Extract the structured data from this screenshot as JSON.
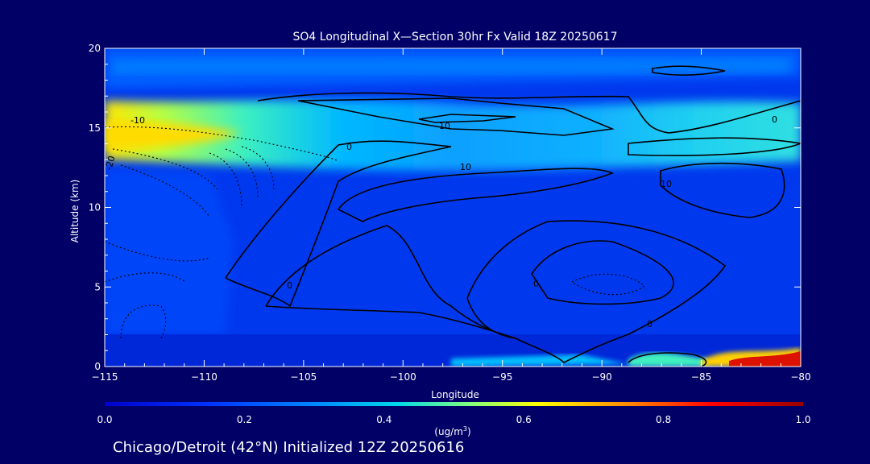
{
  "chart_data": {
    "type": "heatmap",
    "title": "SO4 Longitudinal X—Section 30hr  Fx Valid 18Z 20250617",
    "xlabel": "Longitude",
    "ylabel": "Altitude (km)",
    "xlim": [
      -115,
      -80
    ],
    "ylim": [
      0,
      20
    ],
    "x_ticks": [
      -115,
      -110,
      -105,
      -100,
      -95,
      -90,
      -85,
      -80
    ],
    "x_tick_labels": [
      "−115",
      "−110",
      "−105",
      "−100",
      "−95",
      "−90",
      "−85",
      "−80"
    ],
    "y_ticks": [
      0,
      5,
      10,
      15,
      20
    ],
    "y_tick_labels": [
      "0",
      "5",
      "10",
      "15",
      "20"
    ],
    "colorbar": {
      "min": 0.0,
      "max": 1.0,
      "ticks": [
        "0.0",
        "0.2",
        "0.4",
        "0.6",
        "0.8",
        "1.0"
      ],
      "units_label": "(ug/m",
      "units_sup": "3",
      "units_close": ")"
    },
    "colorscale": [
      "#0000cc",
      "#0033ff",
      "#0088ff",
      "#00d8e8",
      "#7fff7f",
      "#ffff00",
      "#ff8800",
      "#ff0000",
      "#990000"
    ],
    "contour_labels": [
      "-10",
      "-20",
      "0",
      "10",
      "10",
      "10",
      "0",
      "0",
      "0",
      "0"
    ],
    "footer": "Chicago/Detroit (42°N) Initialized 12Z 20250616"
  }
}
